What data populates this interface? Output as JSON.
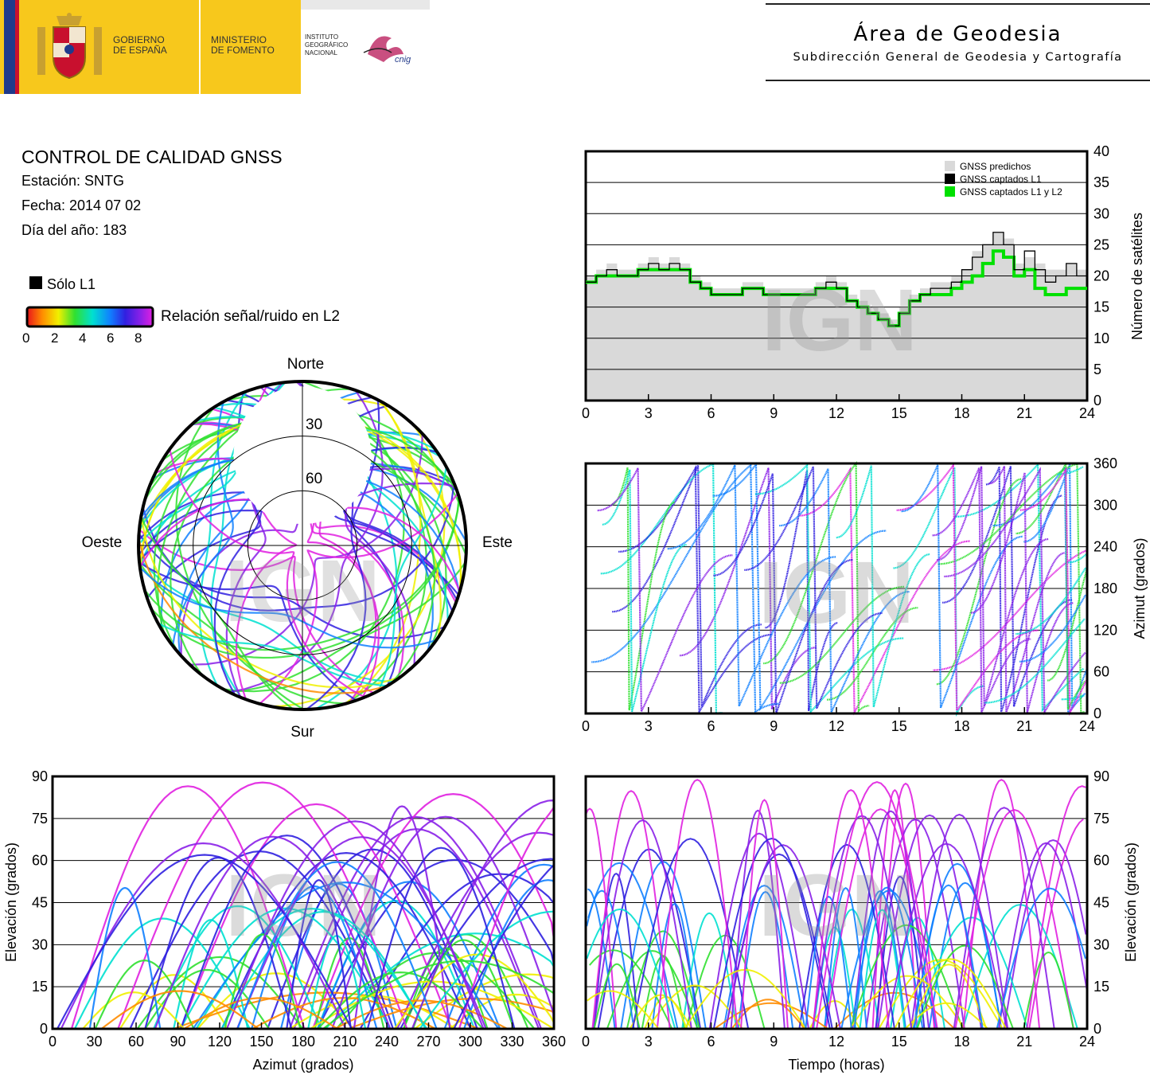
{
  "header": {
    "gov_line1": "GOBIERNO",
    "gov_line2": "DE ESPAÑA",
    "min_line1": "MINISTERIO",
    "min_line2": "DE FOMENTO",
    "ign_line1": "INSTITUTO",
    "ign_line2": "GEOGRÁFICO",
    "ign_line3": "NACIONAL",
    "cnig": "cnig",
    "title": "Área de Geodesia",
    "subtitle": "Subdirección General de Geodesia y Cartografía"
  },
  "info": {
    "heading": "CONTROL DE CALIDAD GNSS",
    "station": "Estación: SNTG",
    "date": "Fecha: 2014 07 02",
    "doy": "Día del año: 183"
  },
  "legend": {
    "l1_only": "Sólo L1",
    "snr_label": "Relación señal/ruido en L2",
    "snr_ticks": [
      "0",
      "2",
      "4",
      "6",
      "8"
    ]
  },
  "colors": {
    "predicted": "#d9d9d9",
    "captured_l1": "#000000",
    "captured_l1l2": "#00e000",
    "snr_scale": [
      "#e8141c",
      "#ff8c00",
      "#f0f000",
      "#30e030",
      "#00e0d0",
      "#1080ff",
      "#3020e0",
      "#8a20e8",
      "#e020e0"
    ]
  },
  "watermark": "IGN",
  "chart_data": [
    {
      "type": "line",
      "id": "satellites_count",
      "xlim": [
        0,
        24
      ],
      "ylim": [
        0,
        40
      ],
      "x_ticks": [
        "0",
        "3",
        "6",
        "9",
        "12",
        "15",
        "18",
        "21",
        "24"
      ],
      "y_ticks": [
        "0",
        "5",
        "10",
        "15",
        "20",
        "25",
        "30",
        "35",
        "40"
      ],
      "xlabel": "",
      "ylabel": "Número de satélites",
      "legend": [
        "GNSS predichos",
        "GNSS captados L1",
        "GNSS captados L1 y L2"
      ],
      "x": [
        0,
        0.5,
        1,
        1.5,
        2,
        2.5,
        3,
        3.5,
        4,
        4.5,
        5,
        5.5,
        6,
        6.5,
        7,
        7.5,
        8,
        8.5,
        9,
        9.5,
        10,
        10.5,
        11,
        11.5,
        12,
        12.5,
        13,
        13.5,
        14,
        14.5,
        15,
        15.5,
        16,
        16.5,
        17,
        17.5,
        18,
        18.5,
        19,
        19.5,
        20,
        20.5,
        21,
        21.5,
        22,
        22.5,
        23,
        23.5,
        24
      ],
      "series": [
        {
          "name": "GNSS predichos",
          "values": [
            20,
            21,
            22,
            21,
            21,
            22,
            23,
            22,
            23,
            22,
            20,
            19,
            18,
            18,
            18,
            19,
            19,
            18,
            18,
            18,
            18,
            18,
            19,
            20,
            19,
            17,
            16,
            15,
            14,
            13,
            15,
            17,
            18,
            19,
            19,
            20,
            21,
            24,
            25,
            27,
            26,
            22,
            23,
            22,
            21,
            21,
            22,
            21,
            20
          ]
        },
        {
          "name": "GNSS captados L1",
          "values": [
            19,
            20,
            21,
            20,
            20,
            21,
            22,
            21,
            22,
            21,
            19,
            18,
            17,
            17,
            17,
            18,
            18,
            17,
            17,
            17,
            17,
            17,
            18,
            19,
            18,
            16,
            15,
            14,
            13,
            12,
            14,
            16,
            17,
            18,
            18,
            19,
            21,
            23,
            25,
            27,
            25,
            21,
            24,
            21,
            19,
            20,
            22,
            20,
            20
          ]
        },
        {
          "name": "GNSS captados L1 y L2",
          "values": [
            19,
            20,
            20,
            20,
            20,
            21,
            21,
            21,
            21,
            21,
            19,
            18,
            17,
            17,
            17,
            18,
            18,
            17,
            17,
            17,
            17,
            17,
            18,
            18,
            18,
            16,
            15,
            14,
            13,
            12,
            14,
            16,
            17,
            17,
            17,
            18,
            19,
            20,
            22,
            24,
            23,
            20,
            21,
            18,
            17,
            17,
            18,
            18,
            18
          ]
        }
      ]
    },
    {
      "type": "scatter",
      "id": "polar_skyplot",
      "title": "",
      "labels": {
        "north": "Norte",
        "south": "Sur",
        "east": "Este",
        "west": "Oeste"
      },
      "rings": [
        "30",
        "60"
      ],
      "r_range": [
        0,
        90
      ]
    },
    {
      "type": "scatter",
      "id": "azimuth_vs_time",
      "xlim": [
        0,
        24
      ],
      "ylim": [
        0,
        360
      ],
      "x_ticks": [
        "0",
        "3",
        "6",
        "9",
        "12",
        "15",
        "18",
        "21",
        "24"
      ],
      "y_ticks": [
        "0",
        "60",
        "120",
        "180",
        "240",
        "300",
        "360"
      ],
      "ylabel": "Azimut (grados)"
    },
    {
      "type": "scatter",
      "id": "elevation_vs_azimuth",
      "xlim": [
        0,
        360
      ],
      "ylim": [
        0,
        90
      ],
      "x_ticks": [
        "0",
        "30",
        "60",
        "90",
        "120",
        "150",
        "180",
        "210",
        "240",
        "270",
        "300",
        "330",
        "360"
      ],
      "y_ticks": [
        "0",
        "15",
        "30",
        "45",
        "60",
        "75",
        "90"
      ],
      "xlabel": "Azimut (grados)",
      "ylabel": "Elevación (grados)"
    },
    {
      "type": "scatter",
      "id": "elevation_vs_time",
      "xlim": [
        0,
        24
      ],
      "ylim": [
        0,
        90
      ],
      "x_ticks": [
        "0",
        "3",
        "6",
        "9",
        "12",
        "15",
        "18",
        "21",
        "24"
      ],
      "y_ticks": [
        "0",
        "15",
        "30",
        "45",
        "60",
        "75",
        "90"
      ],
      "xlabel": "Tiempo (horas)",
      "ylabel": "Elevación (grados)"
    }
  ]
}
